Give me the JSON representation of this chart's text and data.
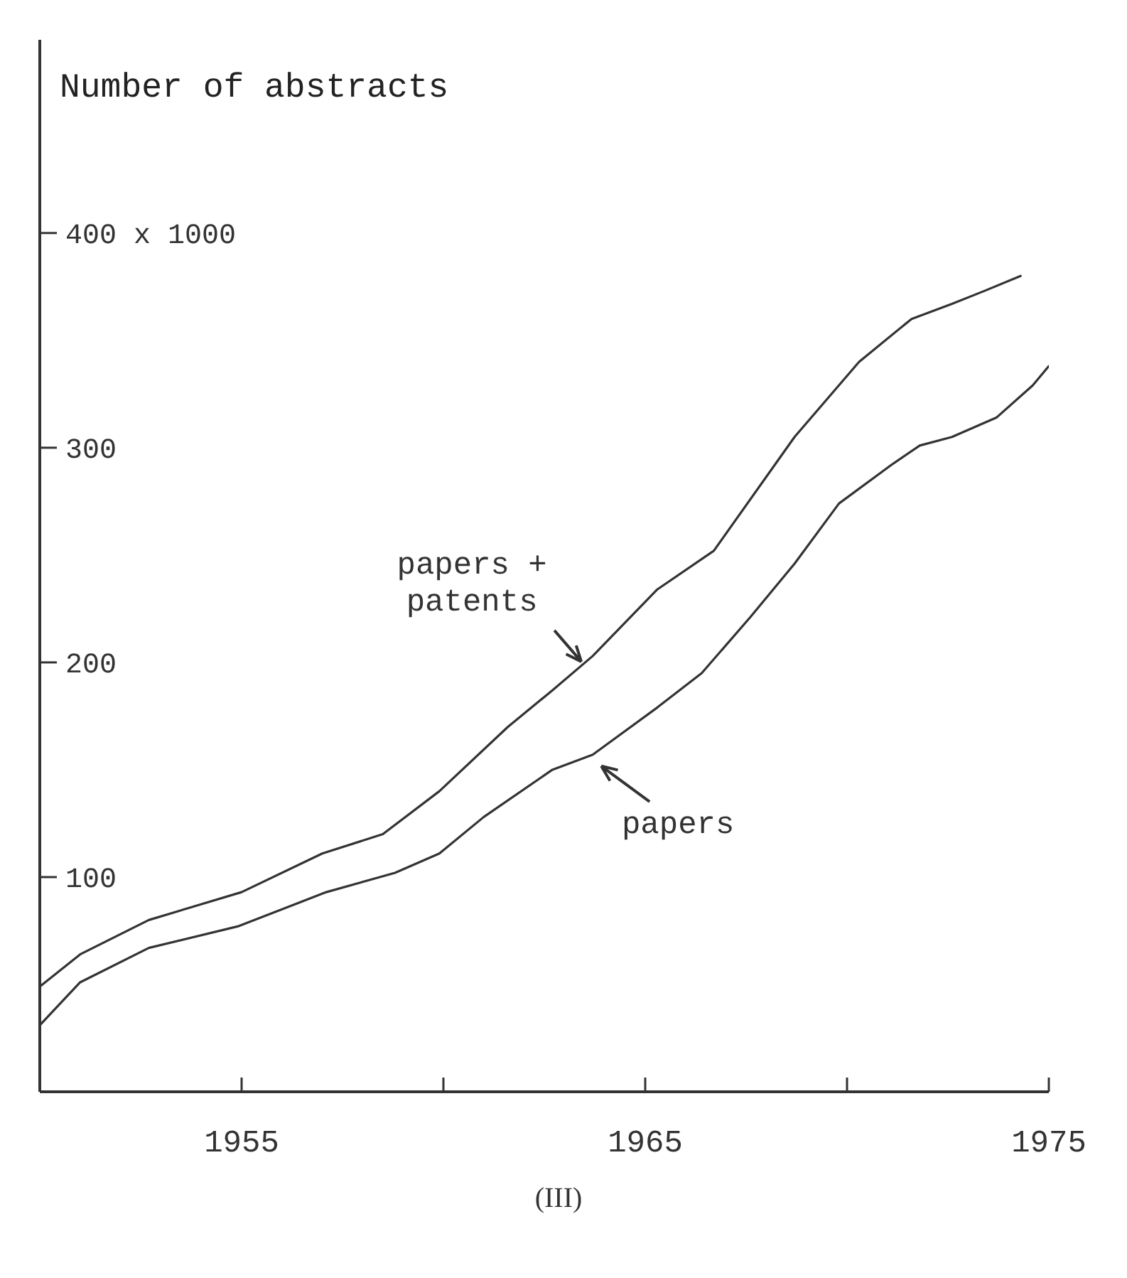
{
  "chart_data": {
    "type": "line",
    "ylabel": "Number of abstracts",
    "series": [
      {
        "name": "papers + patents",
        "color": "#333333",
        "x": [
          1950,
          1951,
          1952.7,
          1955,
          1957,
          1958.5,
          1959.9,
          1961.6,
          1962.7,
          1963.7,
          1965.3,
          1966.7,
          1968.7,
          1970.3,
          1971.6,
          1972.6,
          1973.4,
          1974.3
        ],
        "values": [
          49,
          64,
          80,
          93,
          111,
          120,
          140,
          170,
          187,
          203,
          234,
          252,
          305,
          340,
          360,
          367,
          373,
          380
        ]
      },
      {
        "name": "papers",
        "color": "#333333",
        "x": [
          1950,
          1951,
          1952.7,
          1954.9,
          1957.1,
          1958.8,
          1959.9,
          1961,
          1962.7,
          1963.7,
          1965.3,
          1966.4,
          1967.6,
          1968.7,
          1969.8,
          1971.1,
          1971.8,
          1972.6,
          1973.7,
          1974.6,
          1975
        ],
        "values": [
          31,
          51,
          67,
          77,
          93,
          102,
          111,
          128,
          150,
          157,
          179,
          195,
          221,
          246,
          274,
          292,
          301,
          305,
          314,
          329,
          338
        ]
      }
    ],
    "xlim": [
      1950,
      1975
    ],
    "xticks": [
      1955,
      {
        "value": 1960,
        "label": null
      },
      1965,
      {
        "value": 1970,
        "label": null
      },
      1975
    ],
    "ylim": [
      0,
      490
    ],
    "yticks": [
      100,
      200,
      300,
      {
        "value": 400,
        "label": "400 x 1000"
      }
    ],
    "annotations": [
      "(III)"
    ]
  }
}
